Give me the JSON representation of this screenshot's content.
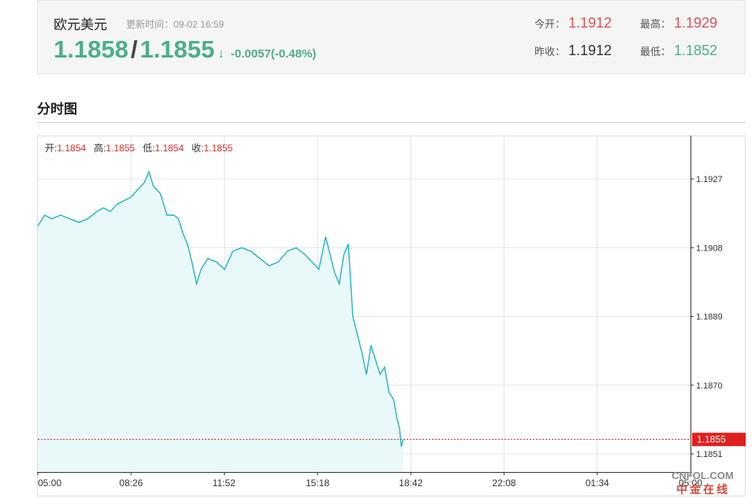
{
  "quote": {
    "name": "欧元美元",
    "updated_label": "更新时间：",
    "updated_time": "09-02 16:59",
    "bid": "1.1858",
    "ask": "1.1855",
    "direction_arrow": "↓",
    "change": "-0.0057(-0.48%)",
    "open_label": "今开：",
    "open": "1.1912",
    "high_label": "最高：",
    "high": "1.1929",
    "prev_close_label": "昨收：",
    "prev_close": "1.1912",
    "low_label": "最低：",
    "low": "1.1852"
  },
  "section": {
    "title": "分时图"
  },
  "ohlc": {
    "open_label": "开:",
    "open": "1.1854",
    "high_label": "高:",
    "high": "1.1855",
    "low_label": "低:",
    "low": "1.1854",
    "close_label": "收:",
    "close": "1.1855"
  },
  "watermark": {
    "line1": "CNFOL.COM",
    "line2": "中金在线"
  },
  "colors": {
    "line": "#1fb3c8",
    "area": "#e9f8f8",
    "up": "#e05252",
    "down": "#4caf8a",
    "last_price_tag": "#e02020",
    "grid": "#e4e4e4"
  },
  "chart_data": {
    "type": "area",
    "title": "",
    "xlabel": "",
    "ylabel": "",
    "x_ticks": [
      "05:00",
      "08:26",
      "11:52",
      "15:18",
      "18:42",
      "22:08",
      "01:34",
      "05:00"
    ],
    "y_ticks": [
      1.1927,
      1.1908,
      1.1889,
      1.187,
      1.1851
    ],
    "ylim": [
      1.1846,
      1.1939
    ],
    "last_price": 1.1855,
    "last_price_label": "1.1855",
    "grid": true,
    "series": [
      {
        "points": [
          [
            "05:00",
            1.1914
          ],
          [
            "05:15",
            1.1917
          ],
          [
            "05:30",
            1.1916
          ],
          [
            "05:50",
            1.1917
          ],
          [
            "06:10",
            1.1916
          ],
          [
            "06:30",
            1.1915
          ],
          [
            "06:50",
            1.1916
          ],
          [
            "07:10",
            1.1918
          ],
          [
            "07:25",
            1.1919
          ],
          [
            "07:40",
            1.1918
          ],
          [
            "07:55",
            1.192
          ],
          [
            "08:10",
            1.1921
          ],
          [
            "08:26",
            1.1922
          ],
          [
            "08:40",
            1.1924
          ],
          [
            "08:55",
            1.1926
          ],
          [
            "09:05",
            1.1929
          ],
          [
            "09:15",
            1.1925
          ],
          [
            "09:30",
            1.1923
          ],
          [
            "09:45",
            1.1917
          ],
          [
            "10:00",
            1.1917
          ],
          [
            "10:10",
            1.1916
          ],
          [
            "10:20",
            1.1912
          ],
          [
            "10:30",
            1.1909
          ],
          [
            "10:40",
            1.1904
          ],
          [
            "10:50",
            1.1898
          ],
          [
            "11:00",
            1.1902
          ],
          [
            "11:15",
            1.1905
          ],
          [
            "11:35",
            1.1904
          ],
          [
            "11:52",
            1.1902
          ],
          [
            "12:10",
            1.1907
          ],
          [
            "12:30",
            1.1908
          ],
          [
            "12:50",
            1.1907
          ],
          [
            "13:10",
            1.1905
          ],
          [
            "13:30",
            1.1903
          ],
          [
            "13:50",
            1.1904
          ],
          [
            "14:10",
            1.1907
          ],
          [
            "14:30",
            1.1908
          ],
          [
            "14:50",
            1.1906
          ],
          [
            "15:05",
            1.1904
          ],
          [
            "15:20",
            1.1902
          ],
          [
            "15:35",
            1.1911
          ],
          [
            "15:45",
            1.1906
          ],
          [
            "15:55",
            1.1901
          ],
          [
            "16:05",
            1.1898
          ],
          [
            "16:15",
            1.1906
          ],
          [
            "16:25",
            1.1909
          ],
          [
            "16:35",
            1.1889
          ],
          [
            "16:45",
            1.1884
          ],
          [
            "16:55",
            1.1879
          ],
          [
            "17:05",
            1.1873
          ],
          [
            "17:15",
            1.1881
          ],
          [
            "17:25",
            1.1877
          ],
          [
            "17:35",
            1.1873
          ],
          [
            "17:45",
            1.1875
          ],
          [
            "17:55",
            1.1868
          ],
          [
            "18:05",
            1.1866
          ],
          [
            "18:12",
            1.1861
          ],
          [
            "18:18",
            1.1858
          ],
          [
            "18:22",
            1.1853
          ],
          [
            "18:26",
            1.1855
          ]
        ]
      }
    ]
  }
}
